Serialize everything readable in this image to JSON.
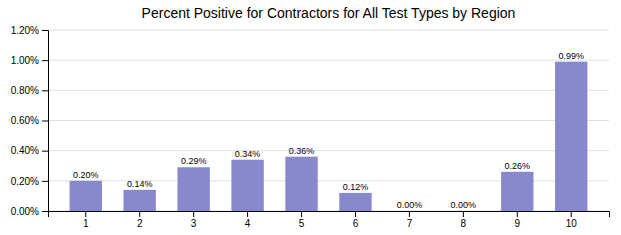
{
  "chart_data": {
    "type": "bar",
    "title": "Percent Positive for Contractors for All Test Types by Region",
    "categories": [
      "1",
      "2",
      "3",
      "4",
      "5",
      "6",
      "7",
      "8",
      "9",
      "10"
    ],
    "values": [
      0.002,
      0.0014,
      0.0029,
      0.0034,
      0.0036,
      0.0012,
      0.0,
      0.0,
      0.0026,
      0.0099
    ],
    "value_labels": [
      "0.20%",
      "0.14%",
      "0.29%",
      "0.34%",
      "0.36%",
      "0.12%",
      "0.00%",
      "0.00%",
      "0.26%",
      "0.99%"
    ],
    "data_labels": true,
    "color": "#8888cc",
    "ylim": [
      0,
      0.012
    ],
    "yticks": [
      {
        "value": 0.0,
        "label": "0.00%"
      },
      {
        "value": 0.002,
        "label": "0.20%"
      },
      {
        "value": 0.004,
        "label": "0.40%"
      },
      {
        "value": 0.006,
        "label": "0.60%"
      },
      {
        "value": 0.008,
        "label": "0.80%"
      },
      {
        "value": 0.01,
        "label": "1.00%"
      },
      {
        "value": 0.012,
        "label": "1.20%"
      }
    ],
    "grid": true
  }
}
